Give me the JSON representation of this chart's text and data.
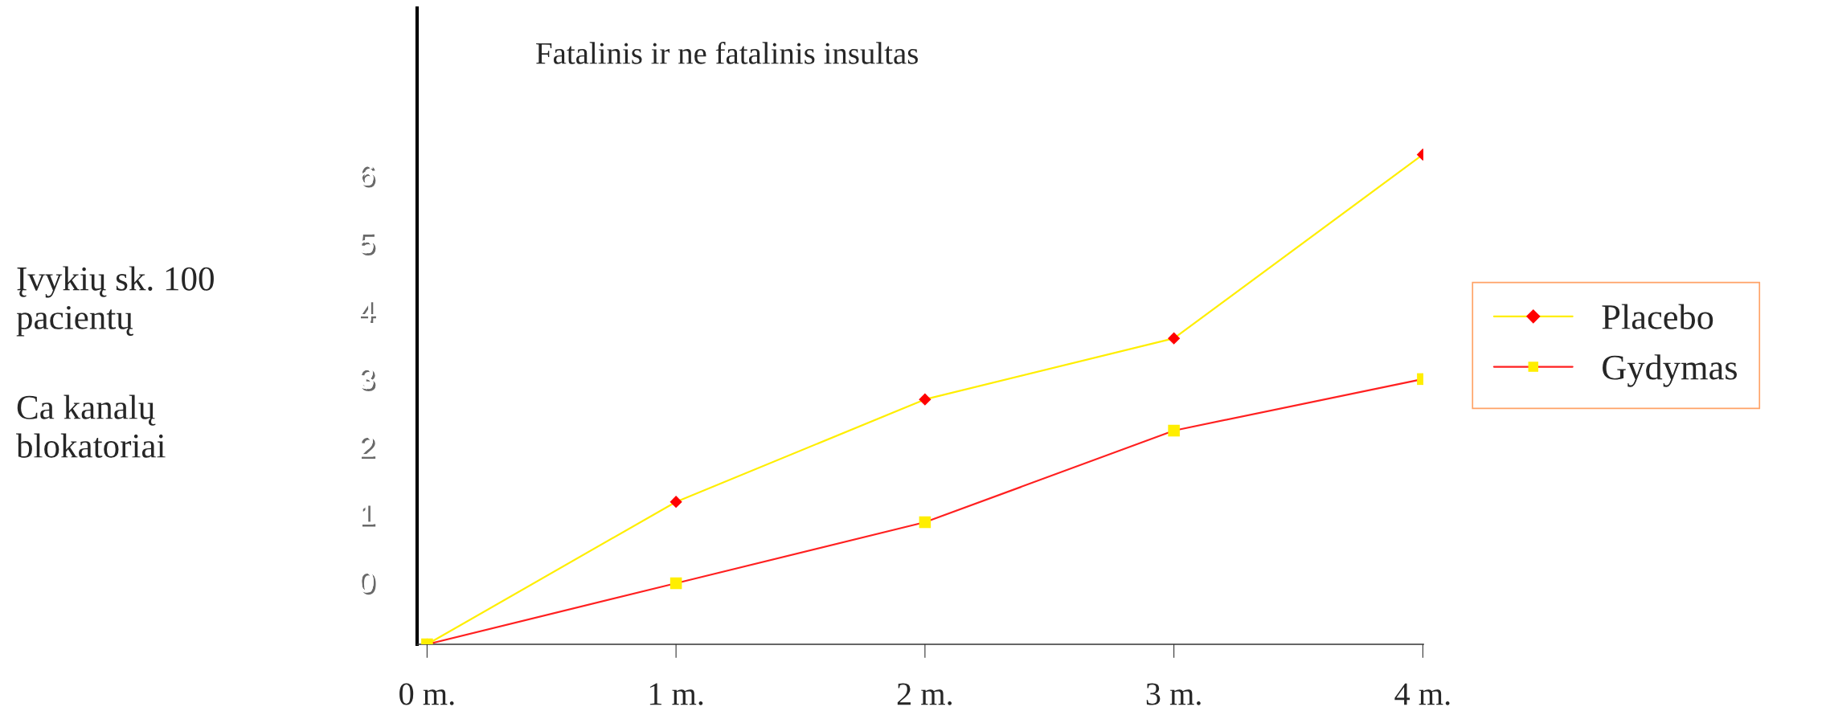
{
  "chart_data": {
    "type": "line",
    "title": "Fatalinis ir ne fatalinis insultas",
    "annotations": [
      "Įvykių sk. 100 pacientų",
      "Ca kanalų blokatoriai"
    ],
    "categories": [
      "0 m.",
      "1 m.",
      "2 m.",
      "3 m.",
      "4 m."
    ],
    "series": [
      {
        "name": "Placebo",
        "color": "#ffee00",
        "colors": [
          "#ffee00",
          "#ff0000",
          "#ff0000",
          "#ff0000",
          "#ff0000"
        ],
        "marker": "diamond",
        "values": [
          -0.93,
          1.17,
          2.68,
          3.58,
          6.29
        ]
      },
      {
        "name": "Gydymas",
        "color": "#ff2020",
        "colors": [
          "#ffee00",
          "#ffee00",
          "#ffee00",
          "#ffee00",
          "#ffee00"
        ],
        "marker": "square",
        "values": [
          -0.93,
          -0.03,
          0.87,
          2.22,
          2.98
        ]
      }
    ],
    "ylim": [
      -0.93,
      8.45
    ],
    "yticks": [
      0,
      1,
      2,
      3,
      4,
      5,
      6
    ],
    "grid": false,
    "legend": "right",
    "line_style": "solid"
  }
}
